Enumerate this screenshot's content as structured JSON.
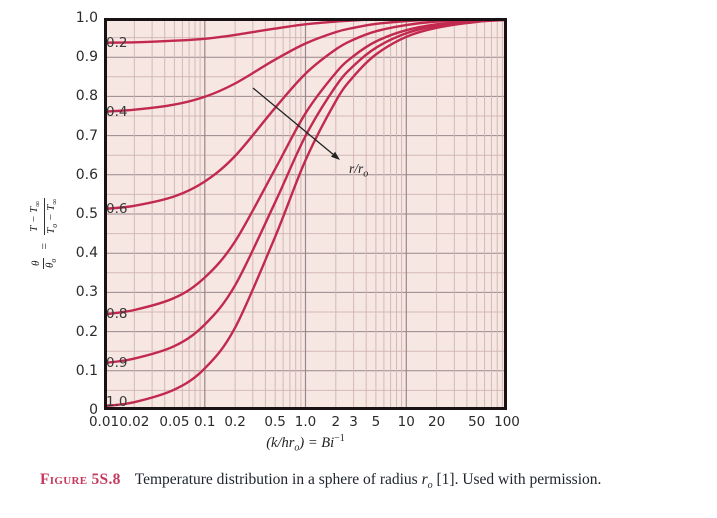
{
  "colors": {
    "curve": "#c2294e",
    "grid_minor": "#d3b8b6",
    "grid_major": "#998789",
    "plot_bg": "#f7e7e3",
    "frame": "#1a1114",
    "figure_tag": "#c43a5e",
    "arrow": "#222222"
  },
  "y_axis": {
    "tick_labels": [
      "1.0",
      "0.9",
      "0.8",
      "0.7",
      "0.6",
      "0.5",
      "0.4",
      "0.3",
      "0.2",
      "0.1",
      "0"
    ],
    "tick_values": [
      1.0,
      0.9,
      0.8,
      0.7,
      0.6,
      0.5,
      0.4,
      0.3,
      0.2,
      0.1,
      0
    ],
    "label": {
      "lhs_num": "θ",
      "lhs_den": "θ",
      "lhs_den_sub": "o",
      "equals": "=",
      "rhs_num": "T − T",
      "rhs_num_sub": "∞",
      "rhs_den_a": "T",
      "rhs_den_a_sub": "o",
      "rhs_den_b": " − T",
      "rhs_den_b_sub": "∞"
    }
  },
  "x_axis": {
    "tick_labels": [
      "0.01",
      "0.02",
      "0.05",
      "0.1",
      "0.2",
      "0.5",
      "1.0",
      "2",
      "3",
      "5",
      "10",
      "20",
      "50",
      "100"
    ],
    "tick_values": [
      0.01,
      0.02,
      0.05,
      0.1,
      0.2,
      0.5,
      1,
      2,
      3,
      5,
      10,
      20,
      50,
      100
    ],
    "label_pre": "(k/hr",
    "label_pre_sub": "o",
    "label_mid": ") = Bi",
    "label_sup": "−1"
  },
  "annotation": {
    "arrow_label_base": "r/r",
    "arrow_label_sub": "o"
  },
  "caption": {
    "tag": "Figure 5S.8",
    "body_pre": "Temperature distribution in a sphere of radius ",
    "body_var": "r",
    "body_var_sub": "o",
    "body_post": " [1]. Used with permission."
  },
  "chart_data": {
    "type": "line",
    "title": "",
    "xlabel": "(k/hr_o) = Bi^-1",
    "ylabel": "theta/theta_o = (T - T_inf)/(T_o - T_inf)",
    "x_scale": "log",
    "xlim": [
      0.01,
      100
    ],
    "ylim": [
      0,
      1.0
    ],
    "grid": true,
    "legend_position": "inline curve labels at left edge; arrow annotation r/r_o points toward increasing radius ratio",
    "x": [
      0.01,
      0.02,
      0.05,
      0.1,
      0.2,
      0.5,
      1,
      2,
      3,
      5,
      10,
      20,
      50,
      100
    ],
    "series": [
      {
        "name": "r/ro = 0.2",
        "label": "0.2",
        "values": [
          0.937,
          0.938,
          0.942,
          0.947,
          0.957,
          0.973,
          0.984,
          0.991,
          0.994,
          0.996,
          0.998,
          0.999,
          1.0,
          1.0
        ]
      },
      {
        "name": "r/ro = 0.4",
        "label": "0.4",
        "values": [
          0.761,
          0.766,
          0.779,
          0.799,
          0.833,
          0.894,
          0.935,
          0.964,
          0.975,
          0.985,
          0.992,
          0.996,
          0.998,
          0.999
        ]
      },
      {
        "name": "r/ro = 0.6",
        "label": "0.6",
        "values": [
          0.513,
          0.521,
          0.545,
          0.583,
          0.648,
          0.771,
          0.858,
          0.92,
          0.945,
          0.966,
          0.982,
          0.991,
          0.996,
          0.998
        ]
      },
      {
        "name": "r/ro = 0.8",
        "label": "0.8",
        "values": [
          0.244,
          0.255,
          0.286,
          0.338,
          0.43,
          0.615,
          0.757,
          0.86,
          0.903,
          0.94,
          0.969,
          0.984,
          0.994,
          0.997
        ]
      },
      {
        "name": "r/ro = 0.9",
        "label": "0.9",
        "values": [
          0.12,
          0.131,
          0.163,
          0.218,
          0.318,
          0.53,
          0.699,
          0.826,
          0.878,
          0.924,
          0.961,
          0.98,
          0.992,
          0.996
        ]
      },
      {
        "name": "r/ro = 1.0",
        "label": "1.0",
        "values": [
          0.01,
          0.02,
          0.052,
          0.106,
          0.21,
          0.442,
          0.637,
          0.788,
          0.851,
          0.907,
          0.952,
          0.975,
          0.99,
          0.995
        ]
      }
    ]
  }
}
